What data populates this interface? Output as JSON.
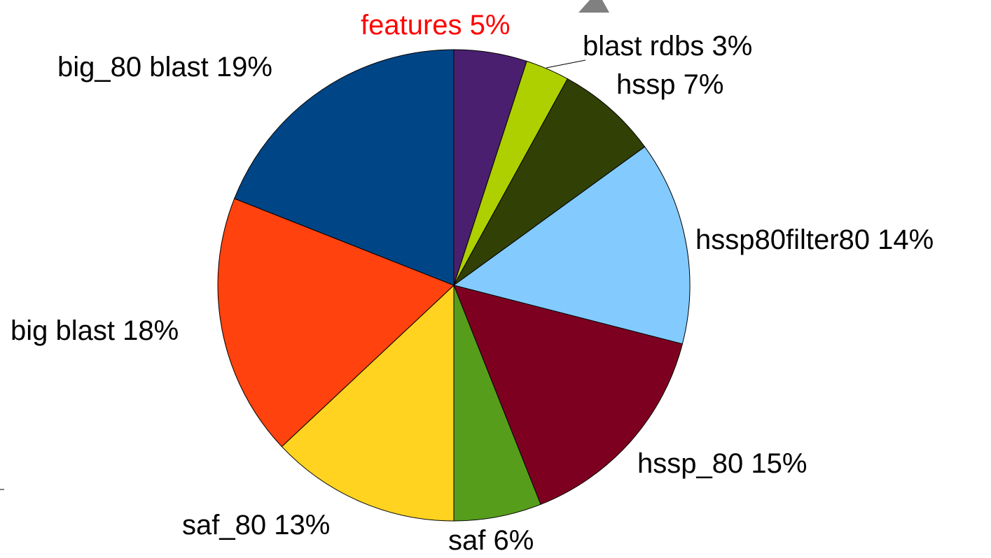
{
  "chart_data": {
    "type": "pie",
    "categories": [
      "features",
      "blast rdbs",
      "hssp",
      "hssp80filter80",
      "hssp_80",
      "saf",
      "saf_80",
      "big blast",
      "big_80 blast"
    ],
    "values": [
      5,
      3,
      7,
      14,
      15,
      6,
      13,
      18,
      19
    ],
    "value_labels": [
      "5%",
      "3%",
      "7%",
      "14%",
      "15%",
      "6%",
      "13%",
      "18%",
      "19%"
    ],
    "colors": [
      "#4b1f6f",
      "#aecf00",
      "#314004",
      "#83caff",
      "#7e0021",
      "#579d1c",
      "#ffd320",
      "#ff420e",
      "#004586"
    ],
    "label_colors": [
      "#ff0000",
      "#000000",
      "#000000",
      "#000000",
      "#000000",
      "#000000",
      "#000000",
      "#000000",
      "#000000"
    ]
  }
}
